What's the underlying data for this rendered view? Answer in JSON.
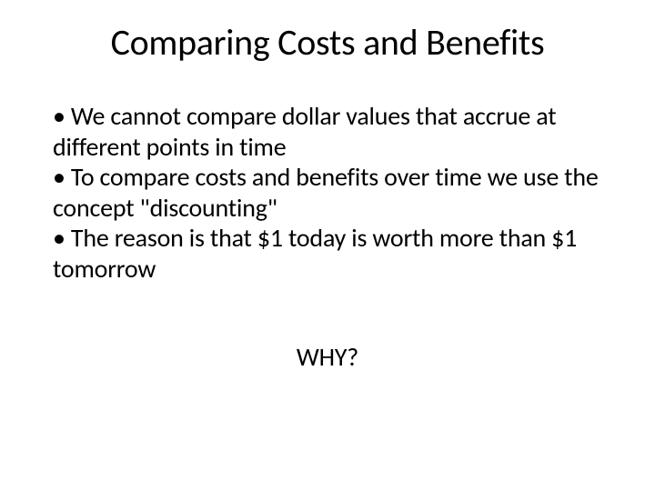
{
  "slide": {
    "title": "Comparing Costs and Benefits",
    "bullets": [
      "• We cannot compare dollar values that accrue at different points in time",
      "• To compare costs and benefits over time we use the concept \"discounting\"",
      "• The reason is that $1 today is worth more than $1 tomorrow"
    ],
    "footer": "WHY?"
  },
  "style": {
    "background_color": "#ffffff",
    "text_color": "#000000",
    "title_fontsize": 40,
    "body_fontsize": 28,
    "font_family": "Calibri"
  }
}
